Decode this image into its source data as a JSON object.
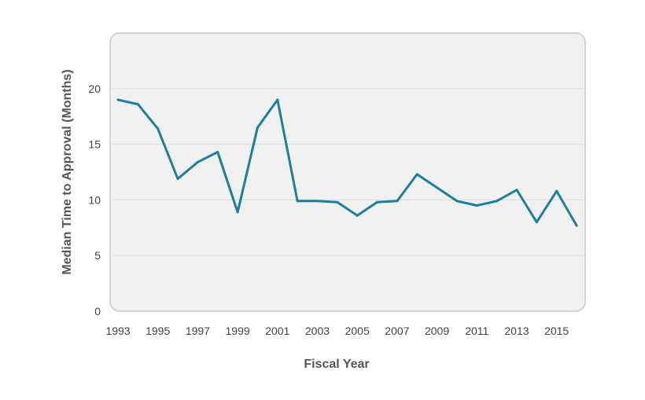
{
  "chart_data": {
    "type": "line",
    "title": "",
    "xlabel": "Fiscal Year",
    "ylabel": "Median Time to Approval (Months)",
    "xlim": [
      1993,
      2016
    ],
    "ylim": [
      0,
      25
    ],
    "x_ticks": [
      1993,
      1995,
      1997,
      1999,
      2001,
      2003,
      2005,
      2007,
      2009,
      2011,
      2013,
      2015
    ],
    "y_ticks": [
      0,
      5,
      10,
      15,
      20
    ],
    "grid": true,
    "series": [
      {
        "x": [
          1993,
          1994,
          1995,
          1996,
          1997,
          1998,
          1999,
          2000,
          2001,
          2002,
          2003,
          2004,
          2005,
          2006,
          2007,
          2008,
          2009,
          2010,
          2011,
          2012,
          2013,
          2014,
          2015,
          2016
        ],
        "values": [
          19.0,
          18.6,
          16.4,
          11.9,
          13.4,
          14.3,
          8.9,
          16.5,
          19.0,
          9.9,
          9.9,
          9.8,
          8.6,
          9.8,
          9.9,
          12.3,
          11.1,
          9.9,
          9.5,
          9.9,
          10.9,
          8.0,
          10.8,
          7.7
        ]
      }
    ],
    "colors": {
      "line": "#1e7f9a",
      "plot_background": "#f1f1f1",
      "plot_border": "#c8c8c8",
      "grid": "#dddddd"
    }
  }
}
